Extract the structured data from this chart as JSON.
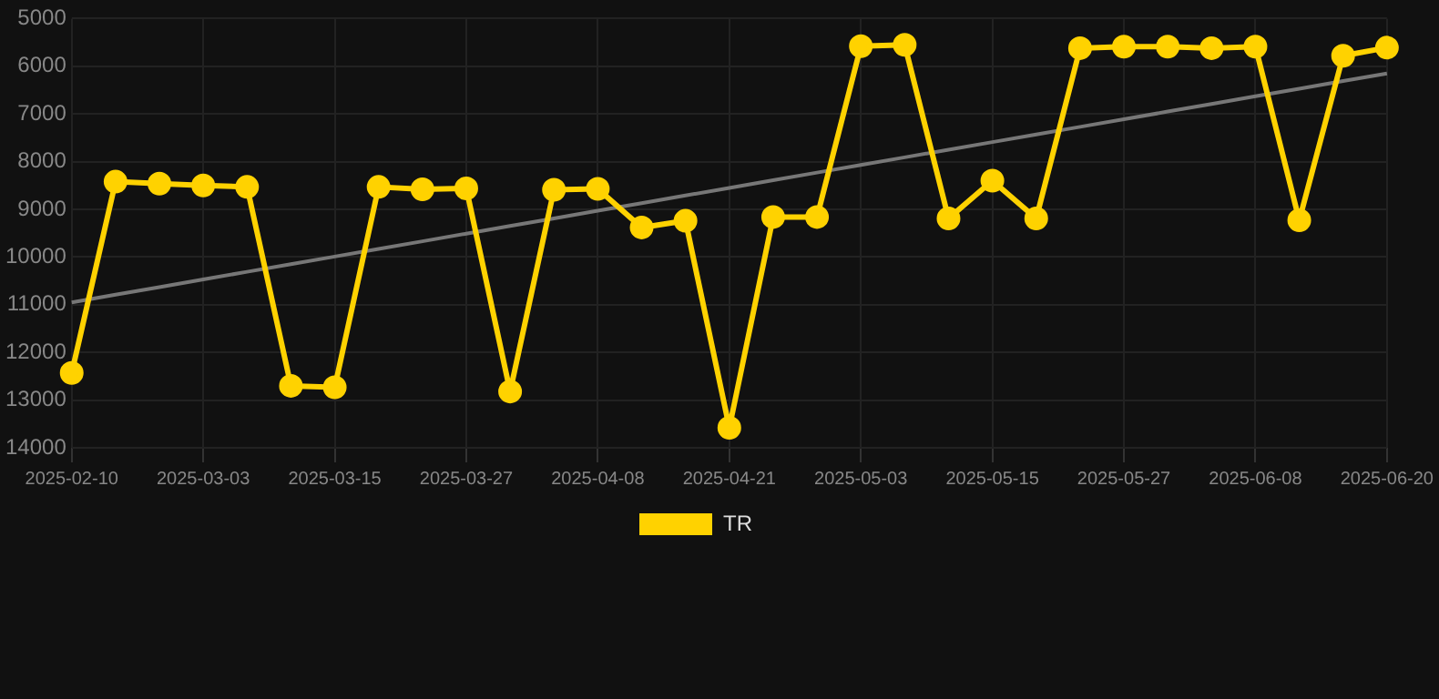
{
  "chart_data": {
    "type": "line",
    "categories": [
      "2025-02-10",
      null,
      null,
      "2025-03-03",
      null,
      null,
      "2025-03-15",
      null,
      null,
      "2025-03-27",
      null,
      null,
      "2025-04-08",
      null,
      null,
      "2025-04-21",
      null,
      null,
      "2025-05-03",
      null,
      null,
      "2025-05-15",
      null,
      null,
      "2025-05-27",
      null,
      null,
      "2025-06-08",
      null,
      null,
      "2025-06-20"
    ],
    "series": [
      {
        "name": "TR",
        "color": "#ffd200",
        "marker": "circle",
        "values": [
          12430,
          8420,
          8460,
          8500,
          8530,
          12700,
          12730,
          8530,
          8580,
          8560,
          12820,
          8590,
          8570,
          9380,
          9240,
          13580,
          9160,
          9160,
          5580,
          5550,
          9190,
          8400,
          9190,
          5620,
          5590,
          5590,
          5620,
          5590,
          9230,
          5780,
          5610
        ]
      },
      {
        "type": "line",
        "color": "#777777",
        "marker": "none",
        "values": [
          10950,
          10790,
          10630,
          10470,
          10310,
          10150,
          9990,
          9830,
          9670,
          9510,
          9350,
          9190,
          9030,
          8870,
          8710,
          8550,
          8390,
          8230,
          8070,
          7910,
          7750,
          7590,
          7430,
          7270,
          7110,
          6950,
          6790,
          6630,
          6470,
          6310,
          6150
        ]
      }
    ],
    "ylim": [
      14000,
      5000
    ],
    "yticks": [
      5000,
      6000,
      7000,
      8000,
      9000,
      10000,
      11000,
      12000,
      13000,
      14000
    ],
    "grid": true,
    "legend": "bottom",
    "line_style": "solid"
  }
}
